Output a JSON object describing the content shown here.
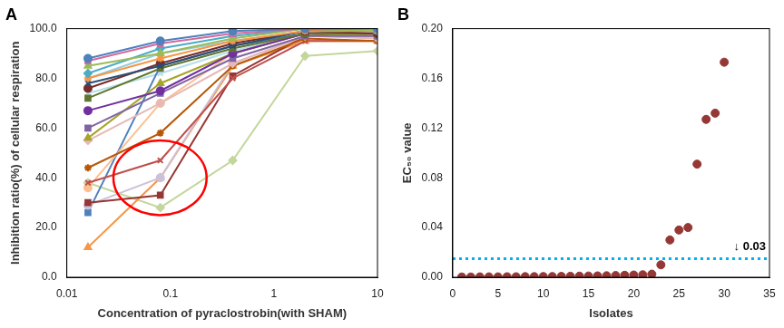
{
  "chart_data": [
    {
      "type": "line",
      "title": "A",
      "x_label": "Concentration of pyraclostrobin(with SHAM)",
      "y_label": "Inhibition ratio(%) of cellular respiration",
      "x": [
        0.016,
        0.08,
        0.4,
        2,
        10
      ],
      "log": "x",
      "xlim": [
        0.01,
        10
      ],
      "xticks": [
        0.01,
        0.1,
        1,
        10
      ],
      "ylim": [
        0,
        100
      ],
      "yticks": [
        {
          "value": 0,
          "label": "0.0"
        },
        {
          "value": 20,
          "label": "20.0"
        },
        {
          "value": 40,
          "label": "40.0"
        },
        {
          "value": 60,
          "label": "60.0"
        },
        {
          "value": 80,
          "label": "80.0"
        },
        {
          "value": 100,
          "label": "100.0"
        }
      ],
      "grid": false,
      "series": [
        {
          "color": "#4f81bd",
          "values": [
            88,
            95,
            99,
            100,
            100
          ]
        },
        {
          "color": "#d46a9c",
          "values": [
            87,
            94,
            98,
            100,
            100
          ]
        },
        {
          "color": "#9bbb59",
          "values": [
            85,
            90,
            96,
            100,
            99
          ]
        },
        {
          "color": "#4bacc6",
          "values": [
            82,
            92,
            97,
            100,
            99
          ]
        },
        {
          "color": "#f79646",
          "values": [
            80,
            88,
            95,
            99,
            99
          ]
        },
        {
          "color": "#2c4d75",
          "values": [
            78,
            85,
            93,
            99,
            99
          ]
        },
        {
          "color": "#772c2a",
          "values": [
            76,
            86,
            94,
            99,
            98
          ]
        },
        {
          "color": "#5f7530",
          "values": [
            72,
            84,
            92,
            98,
            98
          ]
        },
        {
          "color": "#7030a0",
          "values": [
            67,
            75,
            90,
            98,
            98
          ]
        },
        {
          "color": "#8064a2",
          "values": [
            60,
            74,
            88,
            97,
            97
          ]
        },
        {
          "color": "#a5a52a",
          "values": [
            56,
            78,
            90,
            98,
            97
          ]
        },
        {
          "color": "#e6b9b8",
          "values": [
            55,
            70,
            86,
            97,
            96
          ]
        },
        {
          "color": "#b65708",
          "values": [
            44,
            58,
            85,
            96,
            95
          ]
        },
        {
          "color": "#c0504d",
          "values": [
            38,
            47,
            80,
            95,
            95
          ]
        },
        {
          "color": "#fac090",
          "values": [
            36,
            70,
            90,
            98,
            98
          ]
        },
        {
          "color": "#953735",
          "values": [
            30,
            33,
            81,
            97,
            98
          ]
        },
        {
          "color": "#ccc1da",
          "values": [
            29,
            40,
            86,
            97,
            97
          ]
        },
        {
          "color": "#4f81bd",
          "values": [
            26,
            85,
            93,
            98,
            97
          ]
        },
        {
          "color": "#f79646",
          "values": [
            12,
            40,
            85,
            95,
            95
          ]
        },
        {
          "color": "#c3d69b",
          "values": [
            38,
            28,
            47,
            89,
            91
          ]
        },
        {
          "color": "#93cddd",
          "values": [
            80,
            90,
            95,
            99,
            99
          ]
        },
        {
          "color": "#b7dee8",
          "values": [
            74,
            82,
            91,
            98,
            98
          ]
        }
      ]
    },
    {
      "type": "scatter",
      "title": "B",
      "x_label": "Isolates",
      "y_label": "EC₅₀ value",
      "x": [
        1,
        2,
        3,
        4,
        5,
        6,
        7,
        8,
        9,
        10,
        11,
        12,
        13,
        14,
        15,
        16,
        17,
        18,
        19,
        20,
        21,
        22,
        23,
        24,
        25,
        26,
        27,
        28,
        29,
        30
      ],
      "values": [
        0.0002,
        0.0002,
        0.0003,
        0.0003,
        0.0003,
        0.0004,
        0.0004,
        0.0005,
        0.0005,
        0.0006,
        0.0006,
        0.0007,
        0.0008,
        0.0009,
        0.001,
        0.0011,
        0.0012,
        0.0014,
        0.0016,
        0.0018,
        0.002,
        0.0025,
        0.01,
        0.03,
        0.038,
        0.04,
        0.091,
        0.127,
        0.132,
        0.173
      ],
      "color": "#953735",
      "xlim": [
        0,
        35
      ],
      "xticks": [
        0,
        5,
        10,
        15,
        20,
        25,
        30,
        35
      ],
      "ylim": [
        0,
        0.2
      ],
      "yticks": [
        {
          "value": 0,
          "label": "0.00"
        },
        {
          "value": 0.04,
          "label": "0.04"
        },
        {
          "value": 0.08,
          "label": "0.08"
        },
        {
          "value": 0.12,
          "label": "0.12"
        },
        {
          "value": 0.16,
          "label": "0.16"
        },
        {
          "value": 0.2,
          "label": "0.20"
        }
      ],
      "grid": false,
      "annotations": [
        {
          "text": "↓ 0.03",
          "y": 0.015,
          "color": "#00b0f0",
          "line_style": "dotted"
        }
      ]
    }
  ]
}
